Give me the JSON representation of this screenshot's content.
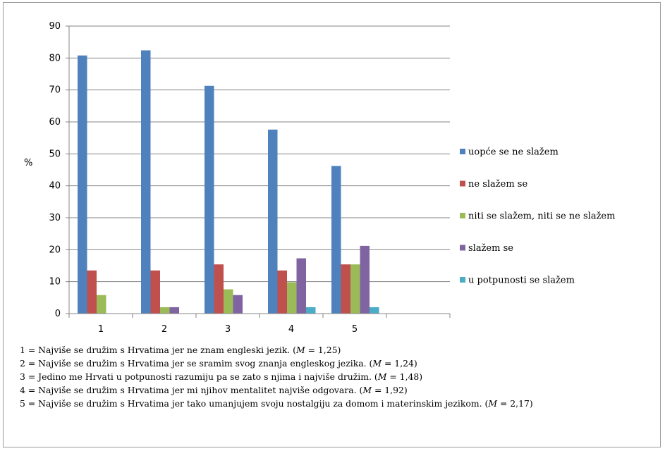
{
  "chart_data": {
    "type": "bar",
    "ylabel": "%",
    "xlabel": "",
    "ylim": [
      0,
      90
    ],
    "ytick_step": 10,
    "categories": [
      "1",
      "2",
      "3",
      "4",
      "5"
    ],
    "empty_trailing_category": true,
    "grid": "horizontal",
    "legend_position": "right",
    "series": [
      {
        "name": "uopće se ne slažem",
        "color": "#4f81bd",
        "values": [
          80.8,
          82.4,
          71.3,
          57.6,
          46.2
        ]
      },
      {
        "name": "ne slažem se",
        "color": "#c0504d",
        "values": [
          13.5,
          13.5,
          15.4,
          13.5,
          15.4
        ]
      },
      {
        "name": "niti se slažem, niti se ne slažem",
        "color": "#9bbb59",
        "values": [
          5.8,
          2.0,
          7.6,
          9.8,
          15.4
        ]
      },
      {
        "name": "slažem se",
        "color": "#8064a2",
        "values": [
          0,
          2.0,
          5.8,
          17.3,
          21.2
        ]
      },
      {
        "name": "u potpunosti se slažem",
        "color": "#4bacc6",
        "values": [
          0,
          0,
          0,
          2.0,
          2.0
        ]
      }
    ]
  },
  "notes": [
    {
      "text": "1 = Najviše se družim s Hrvatima jer ne znam engleski jezik. (",
      "m_var": "M",
      "m_value": " = 1,25)"
    },
    {
      "text": "2 = Najviše se družim s Hrvatima jer se sramim svog znanja engleskog jezika. (",
      "m_var": "M",
      "m_value": " = 1,24)"
    },
    {
      "text": "3 = Jedino me Hrvati u potpunosti razumiju pa se zato s njima i najviše družim. (",
      "m_var": "M",
      "m_value": " = 1,48)"
    },
    {
      "text": "4 = Najviše se družim s Hrvatima jer mi njihov mentalitet najviše odgovara. (",
      "m_var": "M",
      "m_value": " = 1,92)"
    },
    {
      "text": "5 = Najviše se družim s Hrvatima jer tako umanjujem svoju nostalgiju za domom i materinskim jezikom. (",
      "m_var": "M",
      "m_value": " = 2,17)"
    }
  ]
}
